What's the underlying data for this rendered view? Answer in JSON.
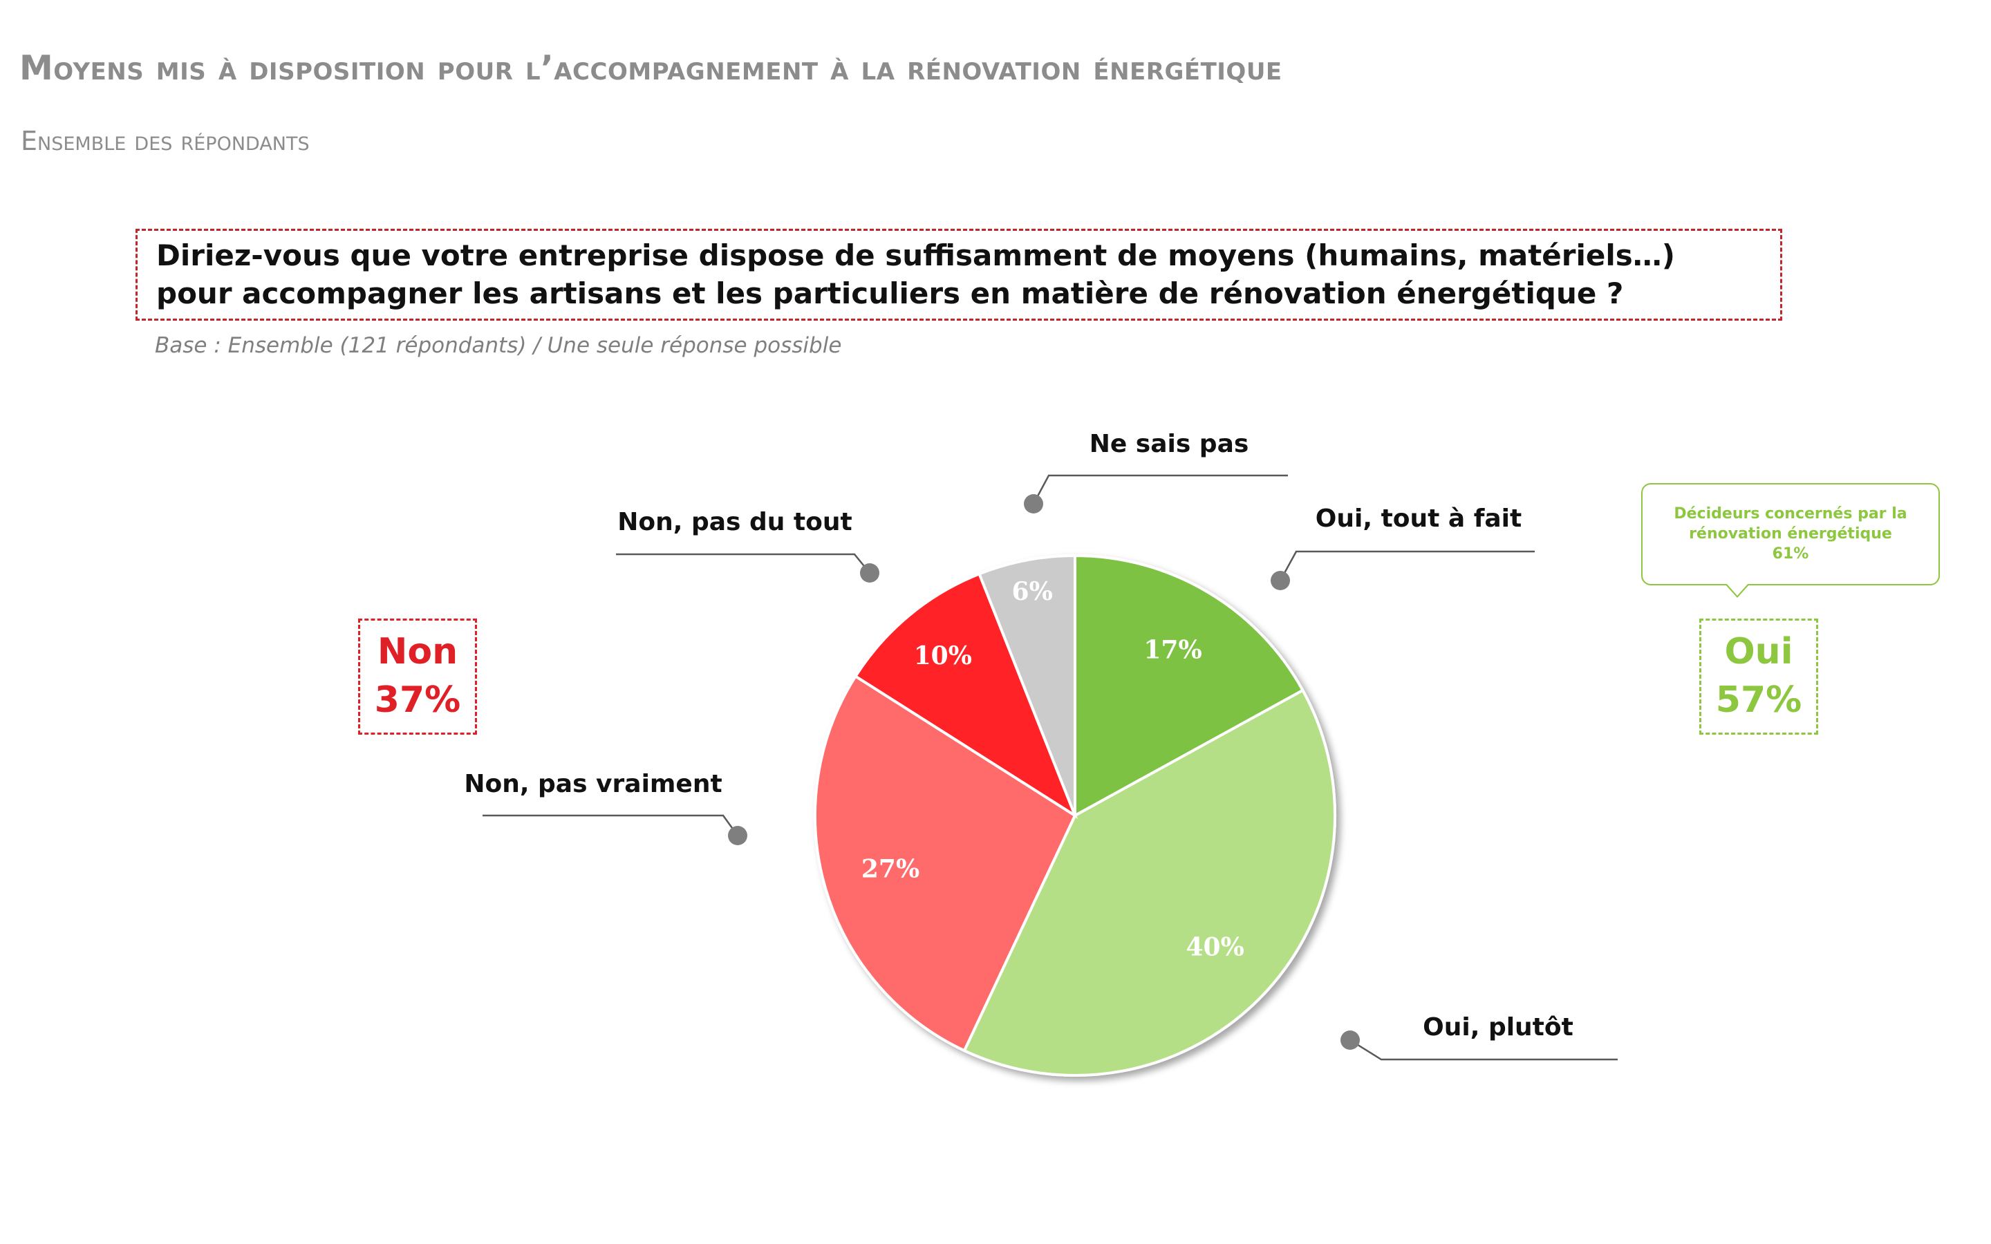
{
  "title": "Moyens mis à disposition pour l’accompagnement à la rénovation énergétique",
  "subtitle": "Ensemble des répondants",
  "question": "Diriez-vous que votre entreprise dispose de suffisamment de moyens (humains, matériels…) pour accompagner les artisans et les particuliers en matière de rénovation énergétique ?",
  "base_note": "Base : Ensemble (121 répondants) / Une seule réponse possible",
  "summary": {
    "non": {
      "label": "Non",
      "value": "37%",
      "color": "#e02027"
    },
    "oui": {
      "label": "Oui",
      "value": "57%",
      "color": "#8dc63f"
    }
  },
  "bubble": {
    "line1": "Décideurs concernés par la",
    "line2": "rénovation énergétique",
    "line3": "61%"
  },
  "chart_data": {
    "type": "pie",
    "title": "",
    "start_angle": "12 o'clock",
    "direction": "clockwise",
    "slices": [
      {
        "label": "Oui, tout à fait",
        "value": 17,
        "display": "17%",
        "color": "#7dc242"
      },
      {
        "label": "Oui, plutôt",
        "value": 40,
        "display": "40%",
        "color": "#b4df87"
      },
      {
        "label": "Non, pas vraiment",
        "value": 27,
        "display": "27%",
        "color": "#ff6b6b"
      },
      {
        "label": "Non, pas du tout",
        "value": 10,
        "display": "10%",
        "color": "#ff2326"
      },
      {
        "label": "Ne sais pas",
        "value": 6,
        "display": "6%",
        "color": "#cbcbcb"
      }
    ]
  }
}
